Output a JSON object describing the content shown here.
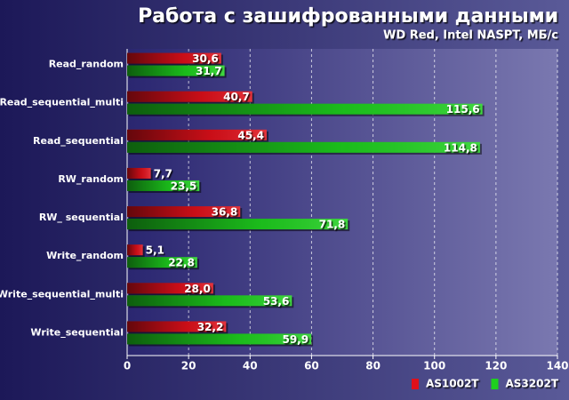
{
  "chart_data": {
    "type": "bar",
    "orientation": "horizontal",
    "title": "Работа с зашифрованными данными",
    "subtitle": "WD Red, Intel NASPT, МБ/с",
    "categories": [
      "Read_random",
      "Read_sequential_multi",
      "Read_sequential",
      "RW_random",
      "RW_ sequential",
      "Write_random",
      "Write_sequential_multi",
      "Write_sequential"
    ],
    "series": [
      {
        "name": "AS1002T",
        "color": "#e0101a",
        "values": [
          30.6,
          40.7,
          45.4,
          7.7,
          36.8,
          5.1,
          28.0,
          32.2
        ],
        "value_labels": [
          "30,6",
          "40,7",
          "45,4",
          "7,7",
          "36,8",
          "5,1",
          "28,0",
          "32,2"
        ]
      },
      {
        "name": "AS3202T",
        "color": "#1ed01e",
        "values": [
          31.7,
          115.6,
          114.8,
          23.5,
          71.8,
          22.8,
          53.6,
          59.9
        ],
        "value_labels": [
          "31,7",
          "115,6",
          "114,8",
          "23,5",
          "71,8",
          "22,8",
          "53,6",
          "59,9"
        ]
      }
    ],
    "xlim": [
      0,
      140
    ],
    "xticks": [
      0,
      20,
      40,
      60,
      80,
      100,
      120,
      140
    ],
    "grid": true,
    "legend": "lower right"
  }
}
